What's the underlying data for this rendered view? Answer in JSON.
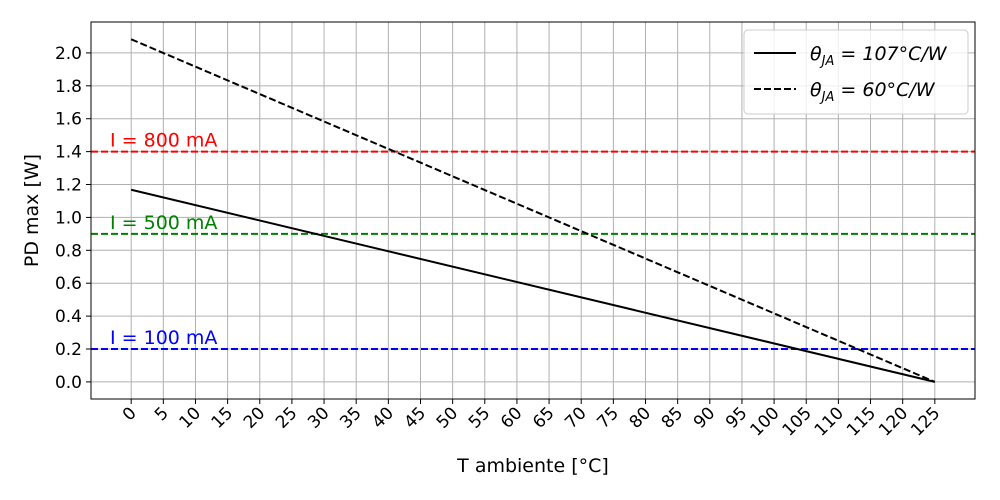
{
  "chart_data": {
    "type": "line",
    "xlabel": "T ambiente [°C]",
    "ylabel": "PD max [W]",
    "xlim": [
      -6.25,
      131.25
    ],
    "ylim": [
      -0.104,
      2.188
    ],
    "x_ticks": [
      0,
      5,
      10,
      15,
      20,
      25,
      30,
      35,
      40,
      45,
      50,
      55,
      60,
      65,
      70,
      75,
      80,
      85,
      90,
      95,
      100,
      105,
      110,
      115,
      120,
      125
    ],
    "y_ticks": [
      0.0,
      0.2,
      0.4,
      0.6,
      0.8,
      1.0,
      1.2,
      1.4,
      1.6,
      1.8,
      2.0
    ],
    "y_tick_labels": [
      "0.0",
      "0.2",
      "0.4",
      "0.6",
      "0.8",
      "1.0",
      "1.2",
      "1.4",
      "1.6",
      "1.8",
      "2.0"
    ],
    "grid": true,
    "legend_position": "top-right",
    "series": [
      {
        "name": "θJA = 107°C/W",
        "legend_main": "θ",
        "legend_sub": "JA",
        "legend_rest": " = 107°C/W",
        "style": "solid",
        "color": "#000000",
        "x": [
          0,
          125
        ],
        "y": [
          1.168,
          0.0
        ]
      },
      {
        "name": "θJA = 60°C/W",
        "legend_main": "θ",
        "legend_sub": "JA",
        "legend_rest": " = 60°C/W",
        "style": "dashed",
        "color": "#000000",
        "x": [
          0,
          125
        ],
        "y": [
          2.083,
          0.0
        ]
      }
    ],
    "reference_lines": [
      {
        "label": "I = 800 mA",
        "y": 1.4,
        "color": "#ff0000"
      },
      {
        "label": "I = 500 mA",
        "y": 0.9,
        "color": "#008000"
      },
      {
        "label": "I = 100 mA",
        "y": 0.2,
        "color": "#0000ff"
      }
    ]
  }
}
